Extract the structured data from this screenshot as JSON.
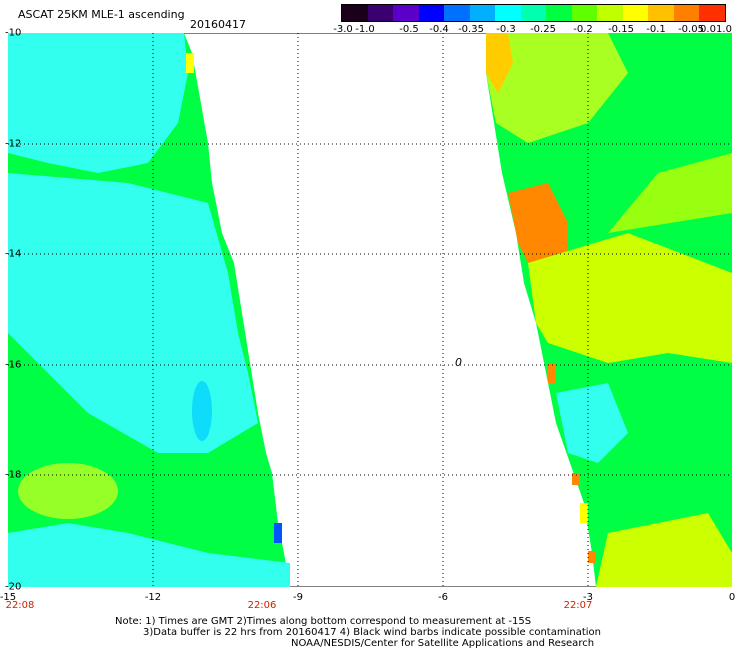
{
  "title": "ASCAT 25KM MLE-1 ascending",
  "date": "20160417",
  "colorbar": {
    "labels": [
      "-3.0",
      "-1.0",
      "-0.5",
      "-0.4",
      "-0.35",
      "-0.3",
      "-0.25",
      "-0.2",
      "-0.15",
      "-0.1",
      "-0.05",
      "0.0",
      "1.0"
    ],
    "colors": [
      "#1a001a",
      "#3a0070",
      "#5a00c8",
      "#0000ff",
      "#0070ff",
      "#00b0ff",
      "#00ffff",
      "#00ffb0",
      "#00ff40",
      "#60ff00",
      "#c0ff00",
      "#ffff00",
      "#ffc000",
      "#ff8000",
      "#ff3000"
    ]
  },
  "map": {
    "x_ticks": [
      "-15",
      "-12",
      "-9",
      "-6",
      "-3",
      "0"
    ],
    "y_ticks": [
      "-10",
      "-12",
      "-14",
      "-16",
      "-18",
      "-20"
    ],
    "times": [
      "22:08",
      "22:06",
      "22:07"
    ],
    "marker": "0",
    "swath_colors": {
      "cyan": "#33ffee",
      "green": "#00ff44",
      "yellow": "#ffff00",
      "orange": "#ff8800",
      "blue": "#0055ff"
    }
  },
  "notes": [
    "Note: 1) Times are GMT 2)Times along bottom correspond to measurement at -15S",
    "3)Data buffer is 22 hrs from 20160417 4) Black wind barbs indicate possible contamination",
    "NOAA/NESDIS/Center for Satellite Applications and Research"
  ]
}
